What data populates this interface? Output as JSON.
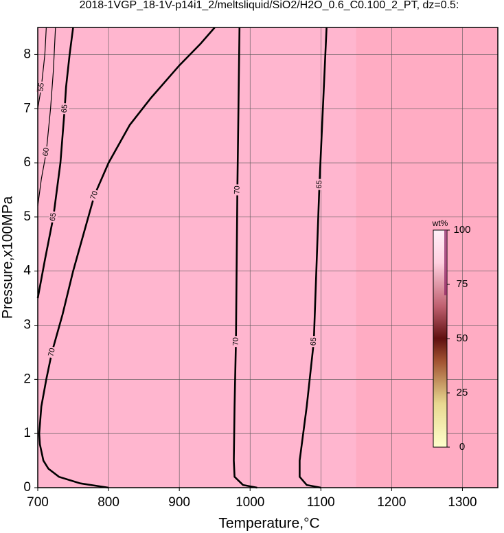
{
  "chart_data": {
    "type": "contour",
    "title": "2018-1VGP_18-1V-p14i1_2/meltsliquid/SiO2/H2O_0.6_C0.100_2_PT, dz=0.5:",
    "x_label": "Temperature,°C",
    "y_label": "Pressure,x100MPa",
    "xlim": [
      700,
      1350
    ],
    "ylim": [
      0,
      8.5
    ],
    "xticks": [
      700,
      800,
      900,
      1000,
      1100,
      1200,
      1300
    ],
    "yticks": [
      0,
      1,
      2,
      3,
      4,
      5,
      6,
      7,
      8
    ],
    "grid": true,
    "background": "#ffb6cf",
    "color": "#000000",
    "contours": [
      {
        "level": 70,
        "x": [
          800,
          760,
          730,
          715,
          708,
          703,
          702,
          705,
          712,
          720,
          735,
          750,
          765,
          780,
          800,
          830,
          860,
          900,
          930,
          950
        ],
        "y": [
          0,
          0.08,
          0.2,
          0.35,
          0.5,
          0.8,
          1.0,
          1.5,
          2,
          2.5,
          3.2,
          4,
          4.7,
          5.4,
          6,
          6.7,
          7.2,
          7.8,
          8.2,
          8.5
        ]
      },
      {
        "level": 70,
        "x": [
          1010,
          990,
          978,
          977,
          978,
          980,
          982,
          985
        ],
        "y": [
          0,
          0.05,
          0.2,
          0.5,
          1.5,
          2.7,
          5.5,
          8.5
        ]
      },
      {
        "level": 65,
        "x": [
          1100,
          1080,
          1070,
          1070,
          1080,
          1090,
          1098,
          1108
        ],
        "y": [
          0,
          0.05,
          0.2,
          0.5,
          1.5,
          2.7,
          5.6,
          8.5
        ]
      },
      {
        "level": 65,
        "x": [
          700,
          710,
          722,
          732,
          738,
          740,
          745,
          750
        ],
        "y": [
          3.5,
          4.2,
          5,
          6,
          7,
          7.4,
          8,
          8.5
        ]
      },
      {
        "level": 60,
        "x": [
          700,
          705,
          712,
          718,
          722,
          725
        ],
        "y": [
          5.2,
          5.7,
          6.2,
          7,
          7.7,
          8.5
        ]
      },
      {
        "level": 55,
        "x": [
          700,
          705,
          710,
          712
        ],
        "y": [
          7,
          7.4,
          8,
          8.5
        ]
      }
    ],
    "colorbar": {
      "label": "wt%",
      "lim": [
        0,
        100
      ],
      "ticks": [
        0,
        25,
        50,
        75,
        100
      ]
    }
  }
}
